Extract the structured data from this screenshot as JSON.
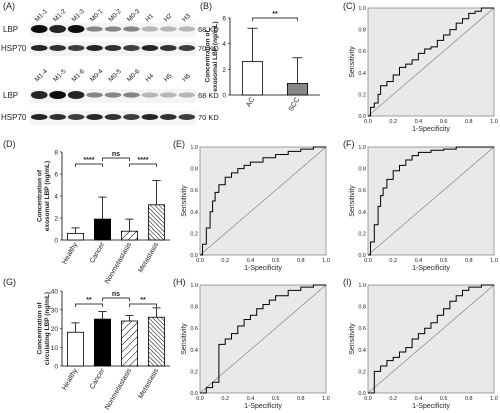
{
  "panels": {
    "A": {
      "label": "(A)",
      "top_lanes": [
        "M1-1",
        "M1-2",
        "M1-3",
        "M0-1",
        "M0-2",
        "M0-3",
        "H1",
        "H2",
        "H3"
      ],
      "bottom_lanes": [
        "M1-4",
        "M1-5",
        "M1-6",
        "M0-4",
        "M0-5",
        "M0-6",
        "H4",
        "H5",
        "H6"
      ],
      "row_labels": [
        "LBP",
        "HSP70"
      ],
      "size_labels": [
        "68 KD",
        "70 KD"
      ]
    },
    "B": {
      "label": "(B)",
      "ylabel": "Concentration of\nexosomal LBP (ng/mL)",
      "sig": "**"
    },
    "C": {
      "label": "(C)"
    },
    "D": {
      "label": "(D)",
      "ylabel": "Concentration of\nexosomal LBP (ng/mL)",
      "sig": [
        "****",
        "ns",
        "****"
      ]
    },
    "E": {
      "label": "(E)"
    },
    "F": {
      "label": "(F)"
    },
    "G": {
      "label": "(G)",
      "ylabel": "Concentration of\ncirculating LBP (ng/mL)",
      "sig": [
        "**",
        "ns",
        "**"
      ]
    },
    "H": {
      "label": "(H)"
    },
    "I": {
      "label": "(I)"
    }
  },
  "roc_axis": {
    "xlabel": "1-Specificity",
    "ylabel": "Sensitivity",
    "ticks": [
      "0.0",
      "0.2",
      "0.4",
      "0.6",
      "0.8",
      "1.0"
    ]
  },
  "chart_data": [
    {
      "panel": "B",
      "type": "bar",
      "categories": [
        "AC",
        "SCC"
      ],
      "values": [
        2.6,
        0.9
      ],
      "errors": [
        2.6,
        2.0
      ],
      "ylim": [
        0,
        6
      ],
      "yticks": [
        0,
        2,
        4,
        6
      ],
      "ylabel": "Concentration of exosomal LBP (ng/mL)",
      "fills": [
        "#ffffff",
        "#888888"
      ]
    },
    {
      "panel": "D",
      "type": "bar",
      "categories": [
        "Healthy",
        "Cancer",
        "Nonmetastasis",
        "Metastasis"
      ],
      "values": [
        0.6,
        1.9,
        0.8,
        3.2
      ],
      "errors": [
        0.5,
        2.0,
        1.1,
        2.2
      ],
      "ylim": [
        0,
        8
      ],
      "yticks": [
        0,
        2,
        4,
        6,
        8
      ],
      "ylabel": "Concentration of exosomal LBP (ng/mL)",
      "fills": [
        "#ffffff",
        "#000000",
        "hatch-light",
        "hatch-dense"
      ]
    },
    {
      "panel": "G",
      "type": "bar",
      "categories": [
        "Healthy",
        "Cancer",
        "Nonmetastasis",
        "Metastasis"
      ],
      "values": [
        18,
        25,
        24,
        26
      ],
      "errors": [
        5,
        4,
        3,
        5
      ],
      "ylim": [
        0,
        40
      ],
      "yticks": [
        0,
        10,
        20,
        30,
        40
      ],
      "ylabel": "Concentration of circulating LBP (ng/mL)",
      "fills": [
        "#ffffff",
        "#000000",
        "hatch-light",
        "hatch-dense"
      ]
    },
    {
      "panel": "C",
      "type": "line",
      "xlabel": "1-Specificity",
      "ylabel": "Sensitivity",
      "xlim": [
        0,
        1
      ],
      "ylim": [
        0,
        1
      ],
      "x": [
        0,
        0.02,
        0.05,
        0.08,
        0.1,
        0.15,
        0.2,
        0.25,
        0.3,
        0.35,
        0.4,
        0.45,
        0.5,
        0.55,
        0.6,
        0.65,
        0.7,
        0.75,
        0.8,
        0.85,
        0.9,
        0.95,
        1.0
      ],
      "y": [
        0,
        0.08,
        0.12,
        0.2,
        0.28,
        0.32,
        0.38,
        0.45,
        0.48,
        0.52,
        0.58,
        0.62,
        0.64,
        0.7,
        0.75,
        0.8,
        0.86,
        0.9,
        0.95,
        0.97,
        1.0,
        1.0,
        1.0
      ]
    },
    {
      "panel": "E",
      "type": "line",
      "xlabel": "1-Specificity",
      "ylabel": "Sensitivity",
      "xlim": [
        0,
        1
      ],
      "ylim": [
        0,
        1
      ],
      "x": [
        0,
        0.02,
        0.05,
        0.08,
        0.1,
        0.12,
        0.15,
        0.2,
        0.25,
        0.3,
        0.35,
        0.4,
        0.5,
        0.6,
        0.7,
        0.8,
        0.9,
        1.0
      ],
      "y": [
        0,
        0.1,
        0.25,
        0.4,
        0.5,
        0.58,
        0.65,
        0.72,
        0.76,
        0.8,
        0.83,
        0.86,
        0.9,
        0.93,
        0.96,
        0.98,
        1.0,
        1.0
      ]
    },
    {
      "panel": "F",
      "type": "line",
      "xlabel": "1-Specificity",
      "ylabel": "Sensitivity",
      "xlim": [
        0,
        1
      ],
      "ylim": [
        0,
        1
      ],
      "x": [
        0,
        0.02,
        0.05,
        0.08,
        0.1,
        0.12,
        0.15,
        0.2,
        0.25,
        0.3,
        0.35,
        0.4,
        0.5,
        0.6,
        0.7,
        0.8,
        0.9,
        1.0
      ],
      "y": [
        0,
        0.12,
        0.28,
        0.45,
        0.55,
        0.62,
        0.7,
        0.78,
        0.83,
        0.88,
        0.92,
        0.95,
        0.97,
        0.98,
        1.0,
        1.0,
        1.0,
        1.0
      ]
    },
    {
      "panel": "H",
      "type": "line",
      "xlabel": "1-Specificity",
      "ylabel": "Sensitivity",
      "xlim": [
        0,
        1
      ],
      "ylim": [
        0,
        1
      ],
      "x": [
        0,
        0.05,
        0.1,
        0.15,
        0.15,
        0.2,
        0.25,
        0.3,
        0.35,
        0.4,
        0.45,
        0.5,
        0.55,
        0.6,
        0.7,
        0.8,
        0.9,
        1.0
      ],
      "y": [
        0,
        0.05,
        0.1,
        0.15,
        0.45,
        0.5,
        0.55,
        0.62,
        0.68,
        0.72,
        0.78,
        0.82,
        0.86,
        0.9,
        0.95,
        0.98,
        1.0,
        1.0
      ]
    },
    {
      "panel": "I",
      "type": "line",
      "xlabel": "1-Specificity",
      "ylabel": "Sensitivity",
      "xlim": [
        0,
        1
      ],
      "ylim": [
        0,
        1
      ],
      "x": [
        0,
        0.05,
        0.1,
        0.15,
        0.2,
        0.25,
        0.3,
        0.35,
        0.4,
        0.45,
        0.5,
        0.55,
        0.6,
        0.65,
        0.7,
        0.75,
        0.8,
        0.9,
        1.0
      ],
      "y": [
        0,
        0.2,
        0.25,
        0.3,
        0.33,
        0.38,
        0.42,
        0.5,
        0.55,
        0.6,
        0.65,
        0.72,
        0.78,
        0.85,
        0.9,
        0.95,
        0.98,
        1.0,
        1.0
      ]
    }
  ]
}
